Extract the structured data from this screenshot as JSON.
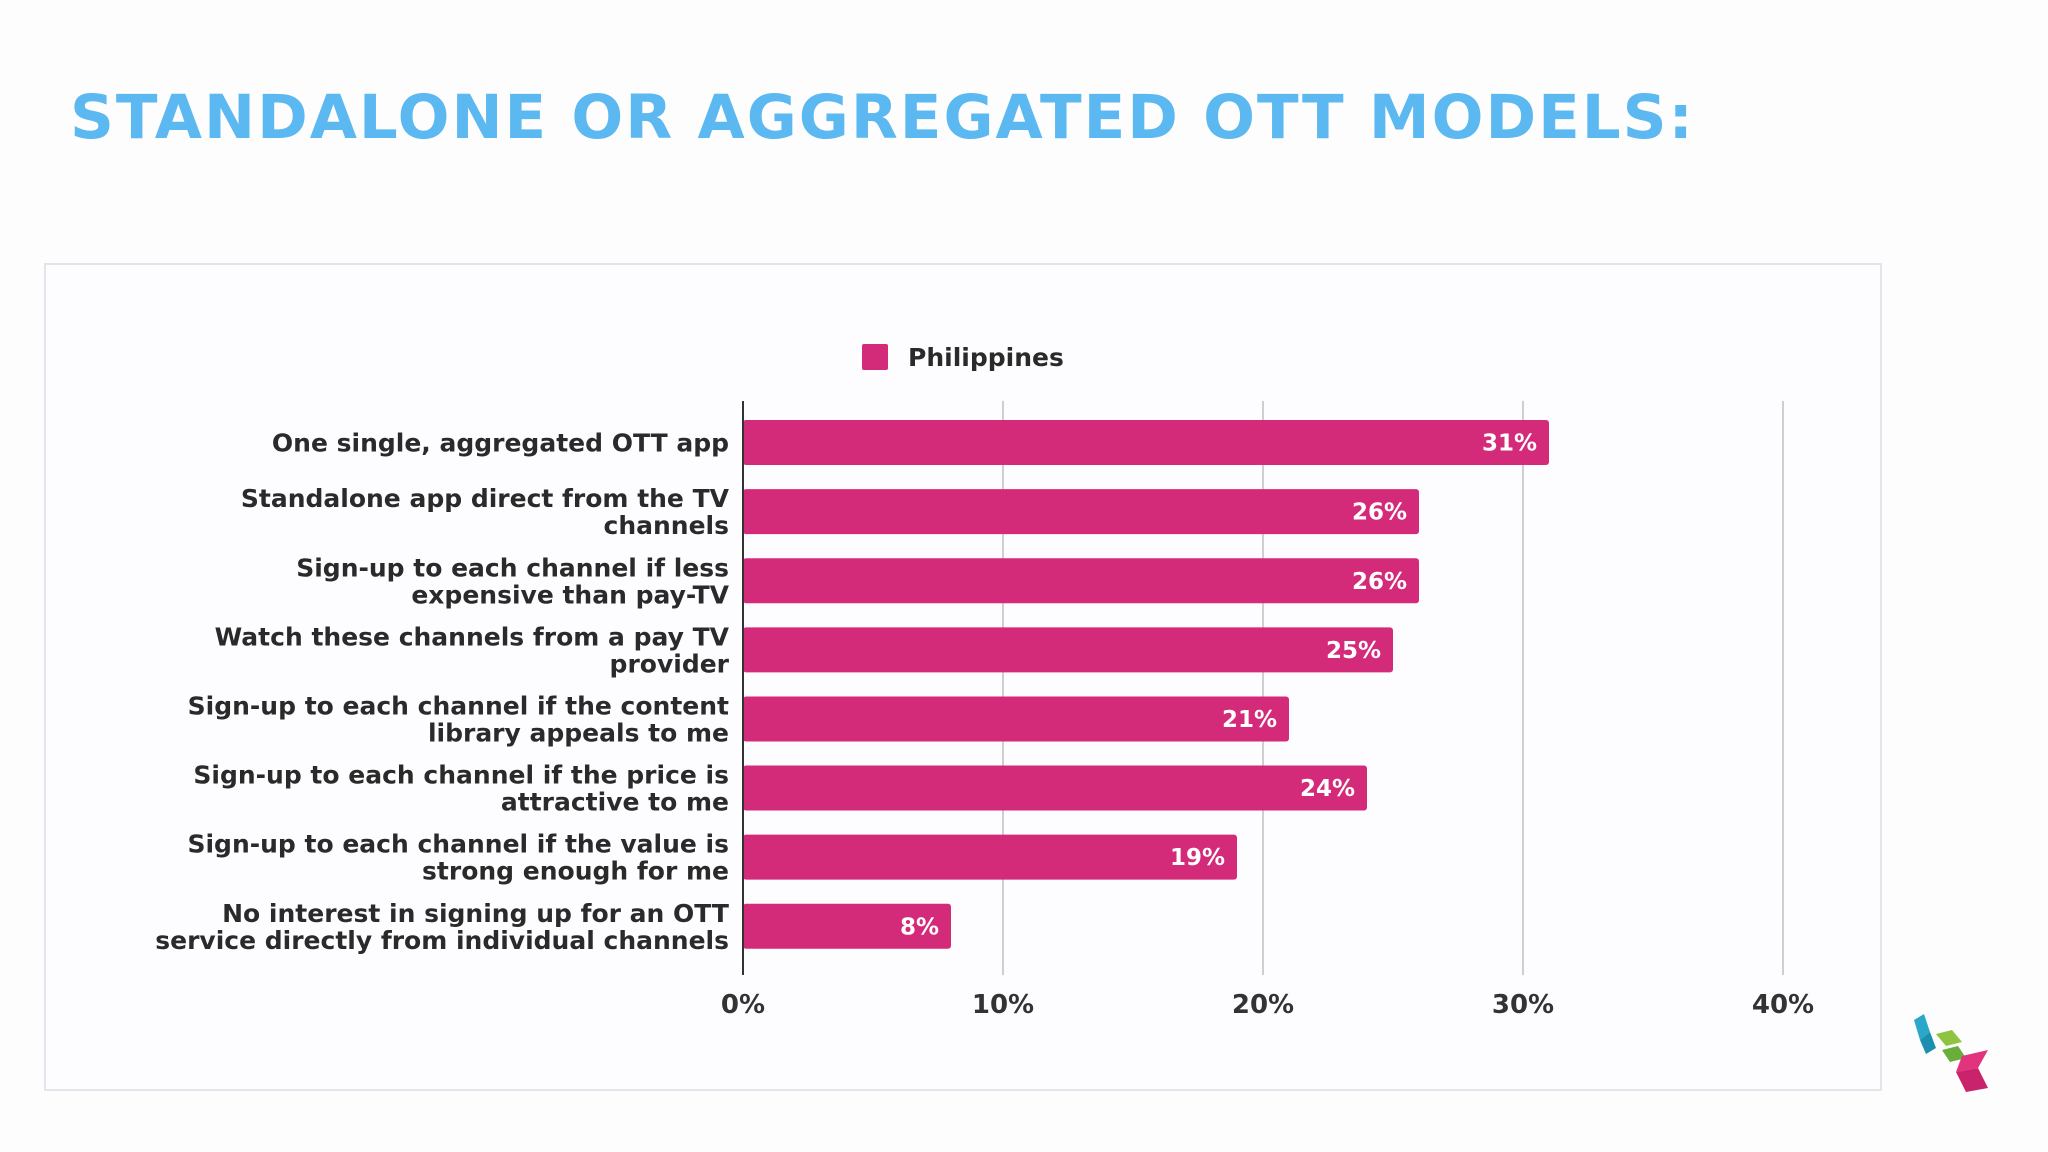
{
  "slide": {
    "title": "STANDALONE OR AGGREGATED OTT MODELS:"
  },
  "colors": {
    "title": "#5bb8f0",
    "bar": "#d42a7a",
    "gridline": "#cfcfcf",
    "axis": "#333333"
  },
  "logo": {
    "icon": "brand-logo-icon"
  },
  "chart_data": {
    "type": "bar",
    "orientation": "horizontal",
    "categories": [
      [
        "One single, aggregated OTT app"
      ],
      [
        "Standalone app direct from the TV",
        "channels"
      ],
      [
        "Sign-up to each channel if less",
        "expensive than pay-TV"
      ],
      [
        "Watch these channels from a pay TV",
        "provider"
      ],
      [
        "Sign-up to each channel if the content",
        "library appeals to me"
      ],
      [
        "Sign-up to each channel if the price is",
        "attractive to me"
      ],
      [
        "Sign-up to each channel if the value is",
        "strong enough for me"
      ],
      [
        "No interest in signing up for an OTT",
        "service directly from individual channels"
      ]
    ],
    "series": [
      {
        "name": "Philippines",
        "values": [
          31,
          26,
          26,
          25,
          21,
          24,
          19,
          8
        ]
      }
    ],
    "data_labels": [
      "31%",
      "26%",
      "26%",
      "25%",
      "21%",
      "24%",
      "19%",
      "8%"
    ],
    "xlim": [
      0,
      40
    ],
    "xticks": [
      0,
      10,
      20,
      30,
      40
    ],
    "xtick_labels": [
      "0%",
      "10%",
      "20%",
      "30%",
      "40%"
    ],
    "grid": true,
    "legend_position": "top-center"
  }
}
